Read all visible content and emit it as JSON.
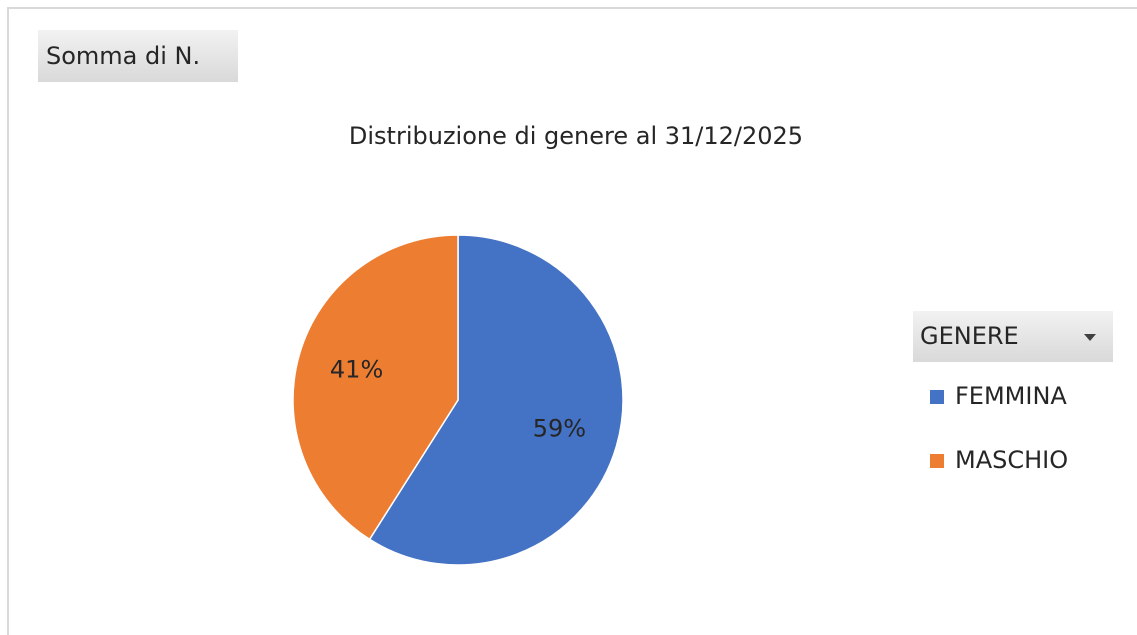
{
  "chart_data": {
    "type": "pie",
    "value_field": "Somma di N.",
    "title": "Distribuzione di genere al 31/12/2025",
    "legend_title": "GENERE",
    "legend": "right",
    "categories": [
      "FEMMINA",
      "MASCHIO"
    ],
    "values": [
      59,
      41
    ],
    "value_labels": [
      "59%",
      "41%"
    ],
    "colors": [
      "#4472c4",
      "#ed7d31"
    ]
  }
}
